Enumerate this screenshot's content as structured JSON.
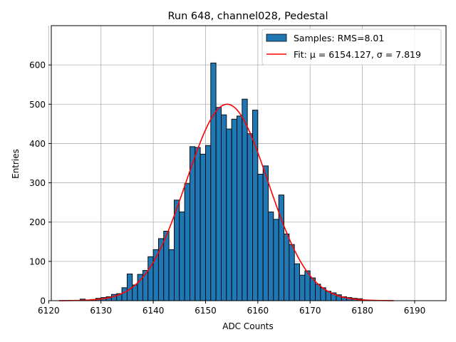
{
  "chart_data": {
    "type": "bar",
    "title": "Run 648, channel028, Pedestal",
    "xlabel": "ADC Counts",
    "ylabel": "Entries",
    "xlim": [
      6120.5,
      6196
    ],
    "ylim": [
      0,
      700
    ],
    "xticks": [
      6120,
      6130,
      6140,
      6150,
      6160,
      6170,
      6180,
      6190
    ],
    "yticks": [
      0,
      100,
      200,
      300,
      400,
      500,
      600
    ],
    "grid": true,
    "legend_position": "top-right",
    "bin_width": 1,
    "series": [
      {
        "name": "Samples: RMS=8.01",
        "kind": "histogram",
        "color": "#1f77b4",
        "edge_color": "#000000",
        "bin_starts": [
          6126,
          6127,
          6128,
          6129,
          6130,
          6131,
          6132,
          6133,
          6134,
          6135,
          6136,
          6137,
          6138,
          6139,
          6140,
          6141,
          6142,
          6143,
          6144,
          6145,
          6146,
          6147,
          6148,
          6149,
          6150,
          6151,
          6152,
          6153,
          6154,
          6155,
          6156,
          6157,
          6158,
          6159,
          6160,
          6161,
          6162,
          6163,
          6164,
          6165,
          6166,
          6167,
          6168,
          6169,
          6170,
          6171,
          6172,
          6173,
          6174,
          6175,
          6176,
          6177,
          6178,
          6179,
          6180,
          6181
        ],
        "values": [
          4,
          2,
          3,
          6,
          8,
          10,
          16,
          18,
          33,
          68,
          40,
          67,
          77,
          112,
          130,
          158,
          177,
          130,
          256,
          226,
          298,
          392,
          390,
          373,
          395,
          605,
          492,
          473,
          437,
          462,
          470,
          513,
          425,
          485,
          322,
          343,
          226,
          207,
          269,
          170,
          143,
          94,
          65,
          76,
          58,
          42,
          33,
          24,
          20,
          15,
          10,
          8,
          6,
          5,
          2,
          1
        ]
      },
      {
        "name": "Fit: μ = 6154.127, σ = 7.819",
        "kind": "gaussian_fit",
        "color": "#ff0000",
        "mu": 6154.127,
        "sigma": 7.819,
        "amplitude": 500,
        "x_range": [
          6122,
          6186
        ]
      }
    ]
  }
}
